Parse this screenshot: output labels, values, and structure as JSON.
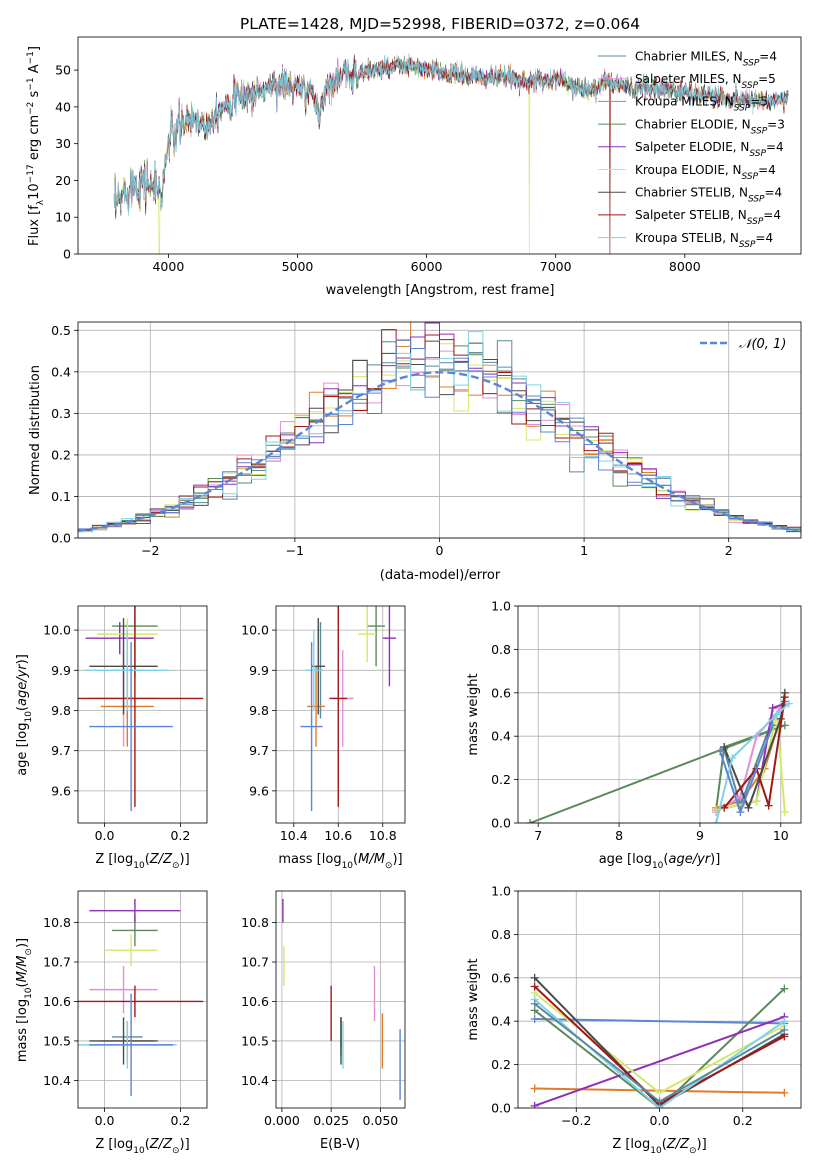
{
  "title": "PLATE=1428, MJD=52998, FIBERID=0372, z=0.064",
  "colors": {
    "Chabrier MILES": "#5b8a9c",
    "Salpeter MILES": "#e38fd6",
    "Kroupa MILES": "#e07b2a",
    "Chabrier ELODIE": "#5a8a5a",
    "Salpeter ELODIE": "#8e2fb4",
    "Kroupa ELODIE": "#d4e86a",
    "Chabrier STELIB": "#4a4a4a",
    "Salpeter STELIB": "#a01818",
    "Kroupa STELIB": "#7fd3e8",
    "extra_blue": "#5b86d6",
    "normal_curve": "#5b86d6"
  },
  "legend_labels": [
    "Chabrier MILES, N_SSP=4",
    "Salpeter MILES, N_SSP=5",
    "Kroupa MILES, N_SSP=5",
    "Chabrier ELODIE, N_SSP=3",
    "Salpeter ELODIE, N_SSP=4",
    "Kroupa ELODIE, N_SSP=4",
    "Chabrier STELIB, N_SSP=4",
    "Salpeter STELIB, N_SSP=4",
    "Kroupa STELIB, N_SSP=4"
  ],
  "chart_data": [
    {
      "id": "spectrum",
      "type": "line",
      "xlabel": "wavelength [Angstrom, rest frame]",
      "ylabel": "Flux [f_λ 10^-17 erg cm^-2 s^-1 A^-1]",
      "xlim": [
        3300,
        8900
      ],
      "ylim": [
        0,
        59
      ],
      "xticks": [
        4000,
        5000,
        6000,
        7000,
        8000
      ],
      "yticks": [
        0,
        10,
        20,
        30,
        40,
        50
      ],
      "grid": false,
      "legend_position": "right",
      "continuum_nodes": [
        [
          3580,
          12
        ],
        [
          3700,
          19
        ],
        [
          3800,
          20
        ],
        [
          3900,
          18
        ],
        [
          3950,
          16
        ],
        [
          4000,
          31
        ],
        [
          4100,
          35
        ],
        [
          4200,
          37
        ],
        [
          4300,
          35
        ],
        [
          4400,
          40
        ],
        [
          4500,
          42
        ],
        [
          4600,
          43
        ],
        [
          4700,
          44
        ],
        [
          4800,
          46
        ],
        [
          4900,
          46
        ],
        [
          5000,
          45
        ],
        [
          5100,
          44
        ],
        [
          5170,
          39
        ],
        [
          5250,
          47
        ],
        [
          5400,
          49
        ],
        [
          5600,
          50
        ],
        [
          5800,
          51
        ],
        [
          5900,
          51
        ],
        [
          6000,
          50
        ],
        [
          6200,
          49
        ],
        [
          6400,
          48
        ],
        [
          6600,
          48
        ],
        [
          6800,
          47
        ],
        [
          6900,
          47
        ],
        [
          7000,
          48
        ],
        [
          7100,
          46
        ],
        [
          7200,
          45
        ],
        [
          7300,
          45
        ],
        [
          7400,
          47
        ],
        [
          7600,
          45
        ],
        [
          7800,
          45
        ],
        [
          8000,
          44
        ],
        [
          8200,
          43
        ],
        [
          8400,
          42
        ],
        [
          8600,
          42
        ],
        [
          8800,
          42
        ]
      ],
      "dips": [
        {
          "wavelength": 3930,
          "model": "Kroupa ELODIE"
        },
        {
          "wavelength": 6795,
          "model": "Kroupa ELODIE"
        },
        {
          "wavelength": 7420,
          "model": "Salpeter STELIB"
        }
      ]
    },
    {
      "id": "residual_histogram",
      "type": "histogram",
      "xlabel": "(data-model)/error",
      "ylabel": "Normed distribution",
      "xlim": [
        -2.5,
        2.5
      ],
      "ylim": [
        0,
        0.52
      ],
      "xticks": [
        -2,
        -1,
        0,
        1,
        2
      ],
      "yticks": [
        0.0,
        0.1,
        0.2,
        0.3,
        0.4,
        0.5
      ],
      "grid": true,
      "bin_width": 0.1,
      "legend": "N(0,1)",
      "legend_position": "top-right",
      "reference_curve": {
        "name": "N(0,1)",
        "mean": 0,
        "sigma": 1
      }
    },
    {
      "id": "age_vs_Z",
      "type": "errorbar",
      "xlabel": "Z [log10(Z/Z⊙)]",
      "ylabel": "age [log10(age/yr)]",
      "xlim": [
        -0.07,
        0.27
      ],
      "ylim": [
        9.52,
        10.06
      ],
      "xticks": [
        0.0,
        0.2
      ],
      "yticks": [
        9.6,
        9.7,
        9.8,
        9.9,
        10.0
      ],
      "grid": true,
      "points": [
        {
          "model": "Chabrier MILES",
          "x": 0.06,
          "xerr": 0.04,
          "y": 9.9,
          "yerr": 0.12
        },
        {
          "model": "Salpeter MILES",
          "x": 0.05,
          "xerr": 0.09,
          "y": 9.83,
          "yerr": 0.12
        },
        {
          "model": "Kroupa MILES",
          "x": 0.06,
          "xerr": 0.07,
          "y": 9.81,
          "yerr": 0.1
        },
        {
          "model": "Chabrier ELODIE",
          "x": 0.08,
          "xerr": 0.06,
          "y": 10.01,
          "yerr": 0.13
        },
        {
          "model": "Salpeter ELODIE",
          "x": 0.04,
          "xerr": 0.09,
          "y": 9.98,
          "yerr": 0.04
        },
        {
          "model": "Kroupa ELODIE",
          "x": 0.06,
          "xerr": 0.08,
          "y": 9.99,
          "yerr": 0.04
        },
        {
          "model": "Chabrier STELIB",
          "x": 0.05,
          "xerr": 0.09,
          "y": 9.91,
          "yerr": 0.12
        },
        {
          "model": "Salpeter STELIB",
          "x": 0.08,
          "xerr": 0.18,
          "y": 9.83,
          "yerr": 0.27
        },
        {
          "model": "Kroupa STELIB",
          "x": 0.06,
          "xerr": 0.11,
          "y": 9.9,
          "yerr": 0.1
        },
        {
          "model": "extra",
          "x": 0.07,
          "xerr": 0.11,
          "y": 9.76,
          "yerr": 0.21
        }
      ]
    },
    {
      "id": "age_vs_mass",
      "type": "errorbar",
      "xlabel": "mass [log10(M/M⊙)]",
      "ylabel": "",
      "xlim": [
        10.32,
        10.9
      ],
      "ylim": [
        9.52,
        10.06
      ],
      "xticks": [
        10.4,
        10.6,
        10.8
      ],
      "yticks": [
        9.6,
        9.7,
        9.8,
        9.9,
        10.0
      ],
      "grid": true,
      "points": [
        {
          "model": "Chabrier MILES",
          "x": 10.52,
          "xerr": 0.01,
          "y": 9.9,
          "yerr": 0.12
        },
        {
          "model": "Salpeter MILES",
          "x": 10.62,
          "xerr": 0.05,
          "y": 9.83,
          "yerr": 0.12
        },
        {
          "model": "Kroupa MILES",
          "x": 10.5,
          "xerr": 0.04,
          "y": 9.81,
          "yerr": 0.1
        },
        {
          "model": "Chabrier ELODIE",
          "x": 10.77,
          "xerr": 0.04,
          "y": 10.01,
          "yerr": 0.1
        },
        {
          "model": "Salpeter ELODIE",
          "x": 10.83,
          "xerr": 0.03,
          "y": 9.98,
          "yerr": 0.12
        },
        {
          "model": "Kroupa ELODIE",
          "x": 10.73,
          "xerr": 0.04,
          "y": 9.99,
          "yerr": 0.07
        },
        {
          "model": "Chabrier STELIB",
          "x": 10.51,
          "xerr": 0.03,
          "y": 9.91,
          "yerr": 0.12
        },
        {
          "model": "Salpeter STELIB",
          "x": 10.6,
          "xerr": 0.04,
          "y": 9.83,
          "yerr": 0.27
        },
        {
          "model": "Kroupa STELIB",
          "x": 10.49,
          "xerr": 0.04,
          "y": 9.9,
          "yerr": 0.1
        },
        {
          "model": "extra",
          "x": 10.48,
          "xerr": 0.05,
          "y": 9.76,
          "yerr": 0.21
        }
      ]
    },
    {
      "id": "massweight_vs_age",
      "type": "line",
      "xlabel": "age [log10(age/yr)]",
      "ylabel": "mass weight",
      "xlim": [
        6.75,
        10.25
      ],
      "ylim": [
        0,
        1
      ],
      "xticks": [
        7,
        8,
        9,
        10
      ],
      "yticks": [
        0.0,
        0.2,
        0.4,
        0.6,
        0.8,
        1.0
      ],
      "grid": true,
      "series": [
        {
          "model": "Chabrier ELODIE",
          "x": [
            6.9,
            10.05,
            9.3,
            9.2
          ],
          "y": [
            0.0,
            0.45,
            0.35,
            0.06
          ]
        },
        {
          "model": "Kroupa MILES",
          "x": [
            9.2,
            9.5,
            9.8,
            10.05
          ],
          "y": [
            0.07,
            0.1,
            0.25,
            0.55
          ]
        },
        {
          "model": "Chabrier MILES",
          "x": [
            9.3,
            9.5,
            9.9,
            10.05
          ],
          "y": [
            0.34,
            0.08,
            0.48,
            0.56
          ]
        },
        {
          "model": "Salpeter MILES",
          "x": [
            9.2,
            9.5,
            9.7,
            10.0
          ],
          "y": [
            0.05,
            0.12,
            0.4,
            0.53
          ]
        },
        {
          "model": "Salpeter ELODIE",
          "x": [
            9.2,
            9.7,
            9.9,
            10.05
          ],
          "y": [
            0.06,
            0.1,
            0.53,
            0.55
          ]
        },
        {
          "model": "Kroupa ELODIE",
          "x": [
            9.2,
            9.7,
            9.95,
            10.05
          ],
          "y": [
            0.06,
            0.1,
            0.5,
            0.05
          ]
        },
        {
          "model": "Chabrier STELIB",
          "x": [
            9.3,
            9.6,
            10.0,
            10.05
          ],
          "y": [
            0.35,
            0.07,
            0.48,
            0.6
          ]
        },
        {
          "model": "Salpeter STELIB",
          "x": [
            9.3,
            9.7,
            9.85,
            10.05
          ],
          "y": [
            0.07,
            0.25,
            0.08,
            0.58
          ]
        },
        {
          "model": "Kroupa STELIB",
          "x": [
            9.2,
            9.4,
            9.95,
            10.1
          ],
          "y": [
            0.0,
            0.3,
            0.5,
            0.55
          ]
        },
        {
          "model": "extra",
          "x": [
            9.25,
            9.5,
            9.9
          ],
          "y": [
            0.33,
            0.05,
            0.45
          ]
        }
      ]
    },
    {
      "id": "mass_vs_Z",
      "type": "errorbar",
      "xlabel": "Z [log10(Z/Z⊙)]",
      "ylabel": "mass [log10(M/M⊙)]",
      "xlim": [
        -0.07,
        0.27
      ],
      "ylim": [
        10.33,
        10.88
      ],
      "xticks": [
        0.0,
        0.2
      ],
      "yticks": [
        10.4,
        10.5,
        10.6,
        10.7,
        10.8
      ],
      "grid": true,
      "points": [
        {
          "model": "Chabrier MILES",
          "x": 0.06,
          "xerr": 0.04,
          "y": 10.51,
          "yerr": 0.04
        },
        {
          "model": "Salpeter MILES",
          "x": 0.05,
          "xerr": 0.09,
          "y": 10.63,
          "yerr": 0.06
        },
        {
          "model": "Kroupa MILES",
          "x": 0.06,
          "xerr": 0.07,
          "y": 10.5,
          "yerr": 0.05
        },
        {
          "model": "Chabrier ELODIE",
          "x": 0.08,
          "xerr": 0.06,
          "y": 10.78,
          "yerr": 0.04
        },
        {
          "model": "Salpeter ELODIE",
          "x": 0.08,
          "xerr": 0.12,
          "y": 10.83,
          "yerr": 0.03
        },
        {
          "model": "Kroupa ELODIE",
          "x": 0.07,
          "xerr": 0.07,
          "y": 10.73,
          "yerr": 0.04
        },
        {
          "model": "Chabrier STELIB",
          "x": 0.05,
          "xerr": 0.09,
          "y": 10.5,
          "yerr": 0.06
        },
        {
          "model": "Salpeter STELIB",
          "x": 0.08,
          "xerr": 0.18,
          "y": 10.6,
          "yerr": 0.04
        },
        {
          "model": "Kroupa STELIB",
          "x": 0.06,
          "xerr": 0.13,
          "y": 10.49,
          "yerr": 0.06
        },
        {
          "model": "extra",
          "x": 0.07,
          "xerr": 0.11,
          "y": 10.49,
          "yerr": 0.13
        }
      ]
    },
    {
      "id": "mass_vs_ebv",
      "type": "errorbar",
      "xlabel": "E(B-V)",
      "ylabel": "",
      "xlim": [
        -0.003,
        0.0625
      ],
      "ylim": [
        10.33,
        10.88
      ],
      "xticks": [
        0.0,
        0.025,
        0.05
      ],
      "yticks": [
        10.4,
        10.5,
        10.6,
        10.7,
        10.8
      ],
      "grid": true,
      "points": [
        {
          "model": "Chabrier MILES",
          "x": 0.03,
          "xerr": 0,
          "y": 10.51,
          "yerr": 0.05
        },
        {
          "model": "Salpeter MILES",
          "x": 0.047,
          "xerr": 0,
          "y": 10.62,
          "yerr": 0.07
        },
        {
          "model": "Kroupa MILES",
          "x": 0.051,
          "xerr": 0,
          "y": 10.5,
          "yerr": 0.07
        },
        {
          "model": "Chabrier ELODIE",
          "x": 0.03,
          "xerr": 0,
          "y": 10.52,
          "yerr": 0.04
        },
        {
          "model": "Salpeter ELODIE",
          "x": 0.0005,
          "xerr": 0,
          "y": 10.83,
          "yerr": 0.03
        },
        {
          "model": "Kroupa ELODIE",
          "x": 0.001,
          "xerr": 0,
          "y": 10.69,
          "yerr": 0.05
        },
        {
          "model": "Chabrier STELIB",
          "x": 0.03,
          "xerr": 0,
          "y": 10.5,
          "yerr": 0.06
        },
        {
          "model": "Salpeter STELIB",
          "x": 0.025,
          "xerr": 0,
          "y": 10.57,
          "yerr": 0.07
        },
        {
          "model": "Kroupa STELIB",
          "x": 0.031,
          "xerr": 0,
          "y": 10.49,
          "yerr": 0.06
        },
        {
          "model": "extra",
          "x": 0.06,
          "xerr": 0,
          "y": 10.44,
          "yerr": 0.09
        }
      ]
    },
    {
      "id": "massweight_vs_Z",
      "type": "line",
      "xlabel": "Z [log10(Z/Z⊙)]",
      "ylabel": "mass weight",
      "xlim": [
        -0.34,
        0.34
      ],
      "ylim": [
        0,
        1
      ],
      "xticks": [
        -0.2,
        0.0,
        0.2
      ],
      "yticks": [
        0.0,
        0.2,
        0.4,
        0.6,
        0.8,
        1.0
      ],
      "grid": true,
      "series": [
        {
          "model": "extra",
          "x": [
            -0.3,
            0.3
          ],
          "y": [
            0.41,
            0.39
          ]
        },
        {
          "model": "Kroupa MILES",
          "x": [
            -0.3,
            0.3
          ],
          "y": [
            0.09,
            0.07
          ]
        },
        {
          "model": "Chabrier ELODIE",
          "x": [
            -0.3,
            0.0,
            0.3
          ],
          "y": [
            0.45,
            0.0,
            0.55
          ]
        },
        {
          "model": "Salpeter ELODIE",
          "x": [
            -0.3,
            0.3
          ],
          "y": [
            0.01,
            0.42
          ]
        },
        {
          "model": "Kroupa ELODIE",
          "x": [
            -0.3,
            0.0,
            0.3
          ],
          "y": [
            0.53,
            0.07,
            0.38
          ]
        },
        {
          "model": "Chabrier STELIB",
          "x": [
            -0.3,
            0.0,
            0.3
          ],
          "y": [
            0.6,
            0.01,
            0.34
          ]
        },
        {
          "model": "Salpeter STELIB",
          "x": [
            -0.3,
            0.0,
            0.3
          ],
          "y": [
            0.56,
            0.02,
            0.33
          ]
        },
        {
          "model": "Kroupa STELIB",
          "x": [
            -0.3,
            0.0,
            0.3
          ],
          "y": [
            0.5,
            0.0,
            0.4
          ]
        },
        {
          "model": "Chabrier MILES",
          "x": [
            -0.3,
            0.0,
            0.3
          ],
          "y": [
            0.48,
            0.03,
            0.36
          ]
        }
      ]
    }
  ],
  "panel_text": {
    "spectrum_ylabel": "Flux [f",
    "hist_ylabel": "Normed distribution",
    "hist_xlabel": "(data-model)/error",
    "legend_normal": "𝒩(0, 1)",
    "age_label": "age  [log",
    "Z_label": "Z [log",
    "mass_label": "mass [log",
    "ebv_label": "E(B-V)",
    "mass_weight_label": "mass weight",
    "wavelength_label": "wavelength [Angstrom, rest frame]"
  }
}
